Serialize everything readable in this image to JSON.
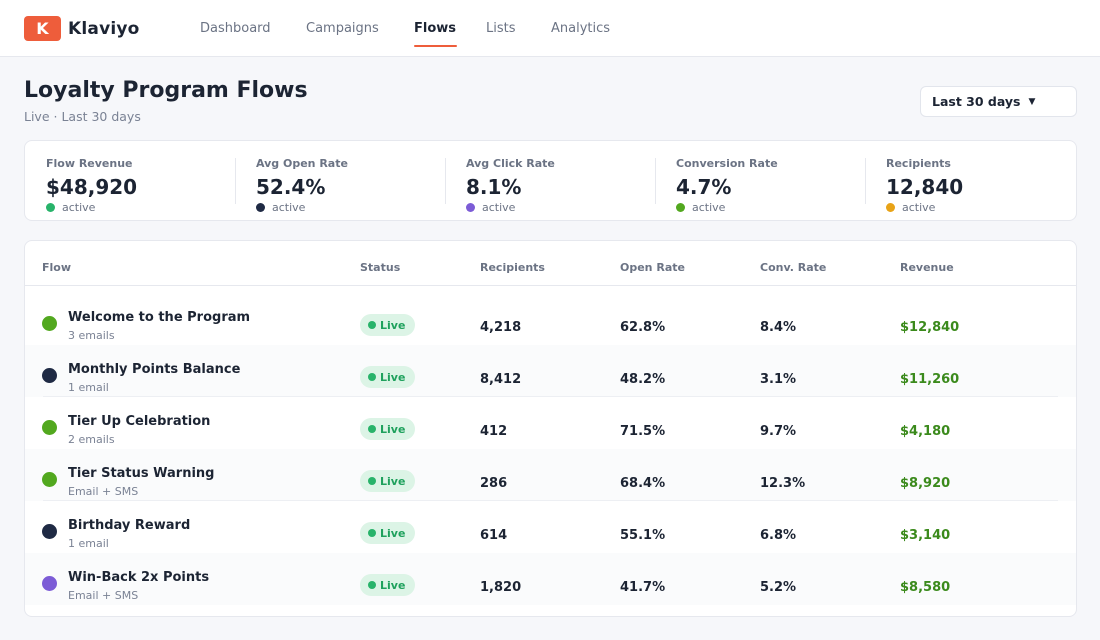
{
  "brand": {
    "logo_letter": "K",
    "name": "Klaviyo",
    "accent": "#ee5d3b"
  },
  "nav": {
    "tabs": [
      {
        "label": "Dashboard",
        "active": false
      },
      {
        "label": "Campaigns",
        "active": false
      },
      {
        "label": "Flows",
        "active": true
      },
      {
        "label": "Lists",
        "active": false
      },
      {
        "label": "Analytics",
        "active": false
      }
    ]
  },
  "header": {
    "title": "Loyalty Program Flows",
    "subtitle": "Live · Last 30 days",
    "range_select": {
      "value": "Last 30 days",
      "icon": "caret-down-icon"
    }
  },
  "kpis": [
    {
      "label": "Flow Revenue",
      "value": "$48,920",
      "status": "active",
      "dot_color": "#28b36a"
    },
    {
      "label": "Avg Open Rate",
      "value": "52.4%",
      "status": "active",
      "dot_color": "#1f2a44"
    },
    {
      "label": "Avg Click Rate",
      "value": "8.1%",
      "status": "active",
      "dot_color": "#7c5cd6"
    },
    {
      "label": "Conversion Rate",
      "value": "4.7%",
      "status": "active",
      "dot_color": "#52a81f"
    },
    {
      "label": "Recipients",
      "value": "12,840",
      "status": "active",
      "dot_color": "#e8a317"
    }
  ],
  "table": {
    "columns": [
      "Flow",
      "Status",
      "Recipients",
      "Open Rate",
      "Conv. Rate",
      "Revenue"
    ],
    "rows": [
      {
        "name": "Welcome to the Program",
        "sub": "3 emails",
        "dot_color": "#52a81f",
        "status": "Live",
        "recipients": "4,218",
        "open_rate": "62.8%",
        "conv_rate": "8.4%",
        "revenue": "$12,840"
      },
      {
        "name": "Monthly Points Balance",
        "sub": "1 email",
        "dot_color": "#1f2a44",
        "status": "Live",
        "recipients": "8,412",
        "open_rate": "48.2%",
        "conv_rate": "3.1%",
        "revenue": "$11,260"
      },
      {
        "name": "Tier Up Celebration",
        "sub": "2 emails",
        "dot_color": "#52a81f",
        "status": "Live",
        "recipients": "412",
        "open_rate": "71.5%",
        "conv_rate": "9.7%",
        "revenue": "$4,180"
      },
      {
        "name": "Tier Status Warning",
        "sub": "Email + SMS",
        "dot_color": "#52a81f",
        "status": "Live",
        "recipients": "286",
        "open_rate": "68.4%",
        "conv_rate": "12.3%",
        "revenue": "$8,920"
      },
      {
        "name": "Birthday Reward",
        "sub": "1 email",
        "dot_color": "#1f2a44",
        "status": "Live",
        "recipients": "614",
        "open_rate": "55.1%",
        "conv_rate": "6.8%",
        "revenue": "$3,140"
      },
      {
        "name": "Win-Back 2x Points",
        "sub": "Email + SMS",
        "dot_color": "#7c5cd6",
        "status": "Live",
        "recipients": "1,820",
        "open_rate": "41.7%",
        "conv_rate": "5.2%",
        "revenue": "$8,580"
      }
    ]
  }
}
